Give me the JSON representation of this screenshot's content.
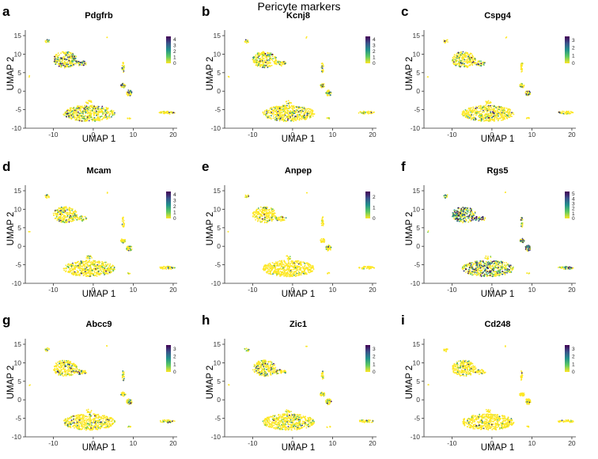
{
  "figure_title": "Pericyte markers",
  "chart_data": [
    {
      "type": "scatter",
      "panel": "a",
      "title": "Pdgfrb",
      "xlabel": "UMAP 1",
      "ylabel": "UMAP 2",
      "xlim": [
        -17,
        21
      ],
      "ylim": [
        -10,
        16.5
      ],
      "xticks": [
        -10,
        0,
        10,
        20
      ],
      "yticks": [
        -10,
        -5,
        0,
        5,
        10,
        15
      ],
      "legend_ticks": [
        0,
        1,
        2,
        3,
        4
      ],
      "legend_max": 4.5,
      "expression_pattern": "moderate"
    },
    {
      "type": "scatter",
      "panel": "b",
      "title": "Kcnj8",
      "xlabel": "UMAP 1",
      "ylabel": "UMAP 2",
      "xlim": [
        -17,
        21
      ],
      "ylim": [
        -10,
        16.5
      ],
      "xticks": [
        -10,
        0,
        10,
        20
      ],
      "yticks": [
        -10,
        -5,
        0,
        5,
        10,
        15
      ],
      "legend_ticks": [
        0,
        1,
        2,
        3,
        4
      ],
      "legend_max": 4.5,
      "expression_pattern": "focal"
    },
    {
      "type": "scatter",
      "panel": "c",
      "title": "Cspg4",
      "xlabel": "UMAP 1",
      "ylabel": "UMAP 2",
      "xlim": [
        -17,
        21
      ],
      "ylim": [
        -10,
        16.5
      ],
      "xticks": [
        -10,
        0,
        10,
        20
      ],
      "yticks": [
        -10,
        -5,
        0,
        5,
        10,
        15
      ],
      "legend_ticks": [
        0,
        1,
        2,
        3
      ],
      "legend_max": 3.5,
      "expression_pattern": "focal"
    },
    {
      "type": "scatter",
      "panel": "d",
      "title": "Mcam",
      "xlabel": "UMAP 1",
      "ylabel": "UMAP 2",
      "xlim": [
        -17,
        21
      ],
      "ylim": [
        -10,
        16.5
      ],
      "xticks": [
        -10,
        0,
        10,
        20
      ],
      "yticks": [
        -10,
        -5,
        0,
        5,
        10,
        15
      ],
      "legend_ticks": [
        0,
        1,
        2,
        3,
        4
      ],
      "legend_max": 4.5,
      "expression_pattern": "focal"
    },
    {
      "type": "scatter",
      "panel": "e",
      "title": "Anpep",
      "xlabel": "UMAP 1",
      "ylabel": "UMAP 2",
      "xlim": [
        -17,
        21
      ],
      "ylim": [
        -10,
        16.5
      ],
      "xticks": [
        -10,
        0,
        10,
        20
      ],
      "yticks": [
        -10,
        -5,
        0,
        5,
        10,
        15
      ],
      "legend_ticks": [
        0,
        1,
        2
      ],
      "legend_max": 2.5,
      "expression_pattern": "low"
    },
    {
      "type": "scatter",
      "panel": "f",
      "title": "Rgs5",
      "xlabel": "UMAP 1",
      "ylabel": "UMAP 2",
      "xlim": [
        -17,
        21
      ],
      "ylim": [
        -10,
        16.5
      ],
      "xticks": [
        -10,
        0,
        10,
        20
      ],
      "yticks": [
        -10,
        -5,
        0,
        5,
        10,
        15
      ],
      "legend_ticks": [
        0,
        1,
        2,
        3,
        4,
        5
      ],
      "legend_max": 5.5,
      "expression_pattern": "broad"
    },
    {
      "type": "scatter",
      "panel": "g",
      "title": "Abcc9",
      "xlabel": "UMAP 1",
      "ylabel": "UMAP 2",
      "xlim": [
        -17,
        21
      ],
      "ylim": [
        -10,
        16.5
      ],
      "xticks": [
        -10,
        0,
        10,
        20
      ],
      "yticks": [
        -10,
        -5,
        0,
        5,
        10,
        15
      ],
      "legend_ticks": [
        0,
        1,
        2,
        3
      ],
      "legend_max": 3.5,
      "expression_pattern": "focal"
    },
    {
      "type": "scatter",
      "panel": "h",
      "title": "Zic1",
      "xlabel": "UMAP 1",
      "ylabel": "UMAP 2",
      "xlim": [
        -17,
        21
      ],
      "ylim": [
        -10,
        16.5
      ],
      "xticks": [
        -10,
        0,
        10,
        20
      ],
      "yticks": [
        -10,
        -5,
        0,
        5,
        10,
        15
      ],
      "legend_ticks": [
        0,
        1,
        2,
        3
      ],
      "legend_max": 3.5,
      "expression_pattern": "focal"
    },
    {
      "type": "scatter",
      "panel": "i",
      "title": "Cd248",
      "xlabel": "UMAP 1",
      "ylabel": "UMAP 2",
      "xlim": [
        -17,
        21
      ],
      "ylim": [
        -10,
        16.5
      ],
      "xticks": [
        -10,
        0,
        10,
        20
      ],
      "yticks": [
        -10,
        -5,
        0,
        5,
        10,
        15
      ],
      "legend_ticks": [
        0,
        1,
        2,
        3
      ],
      "legend_max": 3.5,
      "expression_pattern": "low"
    }
  ],
  "clusters": [
    {
      "name": "main-upper",
      "cx": -7,
      "cy": 8.5,
      "rx": 3,
      "ry": 2.2,
      "n": 240,
      "expression_weight": 0.5
    },
    {
      "name": "upper-tail",
      "cx": -3,
      "cy": 7.5,
      "rx": 1.4,
      "ry": 0.7,
      "n": 40,
      "expression_weight": 0.9
    },
    {
      "name": "small-top",
      "cx": -11.5,
      "cy": 13.5,
      "rx": 0.6,
      "ry": 0.5,
      "n": 14,
      "expression_weight": 0.8
    },
    {
      "name": "big-lower",
      "cx": -1,
      "cy": -6,
      "rx": 6.5,
      "ry": 2.2,
      "n": 500,
      "expression_weight": 0.3
    },
    {
      "name": "lower-knob",
      "cx": -1,
      "cy": -3,
      "rx": 0.8,
      "ry": 0.5,
      "n": 14,
      "expression_weight": 0.2
    },
    {
      "name": "right-column",
      "cx": 7.5,
      "cy": 6.5,
      "rx": 0.3,
      "ry": 1.5,
      "n": 22,
      "expression_weight": 0.3
    },
    {
      "name": "right-middle",
      "cx": 7.5,
      "cy": 1.5,
      "rx": 0.6,
      "ry": 0.6,
      "n": 28,
      "expression_weight": 0.4
    },
    {
      "name": "right-lower",
      "cx": 9,
      "cy": -0.5,
      "rx": 0.7,
      "ry": 0.8,
      "n": 40,
      "expression_weight": 0.6
    },
    {
      "name": "mid-small",
      "cx": 9,
      "cy": -7.3,
      "rx": 0.5,
      "ry": 0.2,
      "n": 6,
      "expression_weight": 0.1
    },
    {
      "name": "far-right",
      "cx": 18.5,
      "cy": -5.8,
      "rx": 2,
      "ry": 0.4,
      "n": 45,
      "expression_weight": 0.3
    },
    {
      "name": "outlier-left",
      "cx": -16,
      "cy": 4,
      "rx": 0.2,
      "ry": 0.2,
      "n": 2,
      "expression_weight": 0.0
    },
    {
      "name": "outlier-top",
      "cx": 3.5,
      "cy": 14.5,
      "rx": 0.2,
      "ry": 0.2,
      "n": 2,
      "expression_weight": 0.0
    }
  ],
  "colors": {
    "scale_low": "#fde725",
    "scale_mid_low": "#5ec962",
    "scale_mid": "#21918c",
    "scale_mid_high": "#3b528b",
    "scale_high": "#440154",
    "axis": "#333333"
  }
}
